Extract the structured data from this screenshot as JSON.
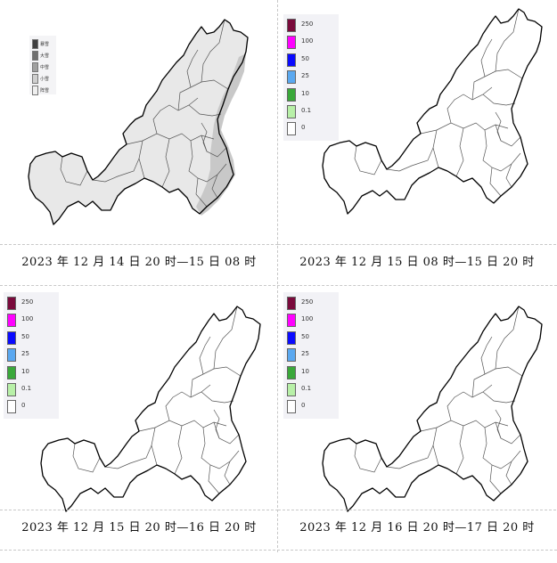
{
  "panels": [
    {
      "caption": "2023 年 12 月 14 日 20 时—15 日 08 时",
      "legend_style": "grayscale",
      "legend": [
        {
          "label": "暴雪",
          "color": "#404040"
        },
        {
          "label": "大雪",
          "color": "#707070"
        },
        {
          "label": "中雪",
          "color": "#a0a0a0"
        },
        {
          "label": "小雪",
          "color": "#cfcfcf"
        },
        {
          "label": "阵雪",
          "color": "#efefef"
        }
      ],
      "shaded": true
    },
    {
      "caption": "2023 年 12 月 15 日 08 时—15 日 20 时",
      "legend_style": "color",
      "legend": [
        {
          "label": "250",
          "color": "#7a0a3c"
        },
        {
          "label": "100",
          "color": "#ff00ff"
        },
        {
          "label": "50",
          "color": "#0a0aff"
        },
        {
          "label": "25",
          "color": "#5aa8f0"
        },
        {
          "label": "10",
          "color": "#3aa83a"
        },
        {
          "label": "0.1",
          "color": "#b8f0a8"
        },
        {
          "label": "0",
          "color": "#ffffff"
        }
      ],
      "shaded": false
    },
    {
      "caption": "2023 年 12 月 15 日 20 时—16 日 20 时",
      "legend_style": "color",
      "legend": [
        {
          "label": "250",
          "color": "#7a0a3c"
        },
        {
          "label": "100",
          "color": "#ff00ff"
        },
        {
          "label": "50",
          "color": "#0a0aff"
        },
        {
          "label": "25",
          "color": "#5aa8f0"
        },
        {
          "label": "10",
          "color": "#3aa83a"
        },
        {
          "label": "0.1",
          "color": "#b8f0a8"
        },
        {
          "label": "0",
          "color": "#ffffff"
        }
      ],
      "shaded": false
    },
    {
      "caption": "2023 年 12 月 16 日 20 时—17 日 20 时",
      "legend_style": "color",
      "legend": [
        {
          "label": "250",
          "color": "#7a0a3c"
        },
        {
          "label": "100",
          "color": "#ff00ff"
        },
        {
          "label": "50",
          "color": "#0a0aff"
        },
        {
          "label": "25",
          "color": "#5aa8f0"
        },
        {
          "label": "10",
          "color": "#3aa83a"
        },
        {
          "label": "0.1",
          "color": "#b8f0a8"
        },
        {
          "label": "0",
          "color": "#ffffff"
        }
      ],
      "shaded": false
    }
  ],
  "colors": {
    "map_fill_shaded": "#e8e8e8",
    "map_fill": "#ffffff",
    "heavy_band": "#c8c8c8",
    "outline": "#000000",
    "boundary": "#555555"
  }
}
